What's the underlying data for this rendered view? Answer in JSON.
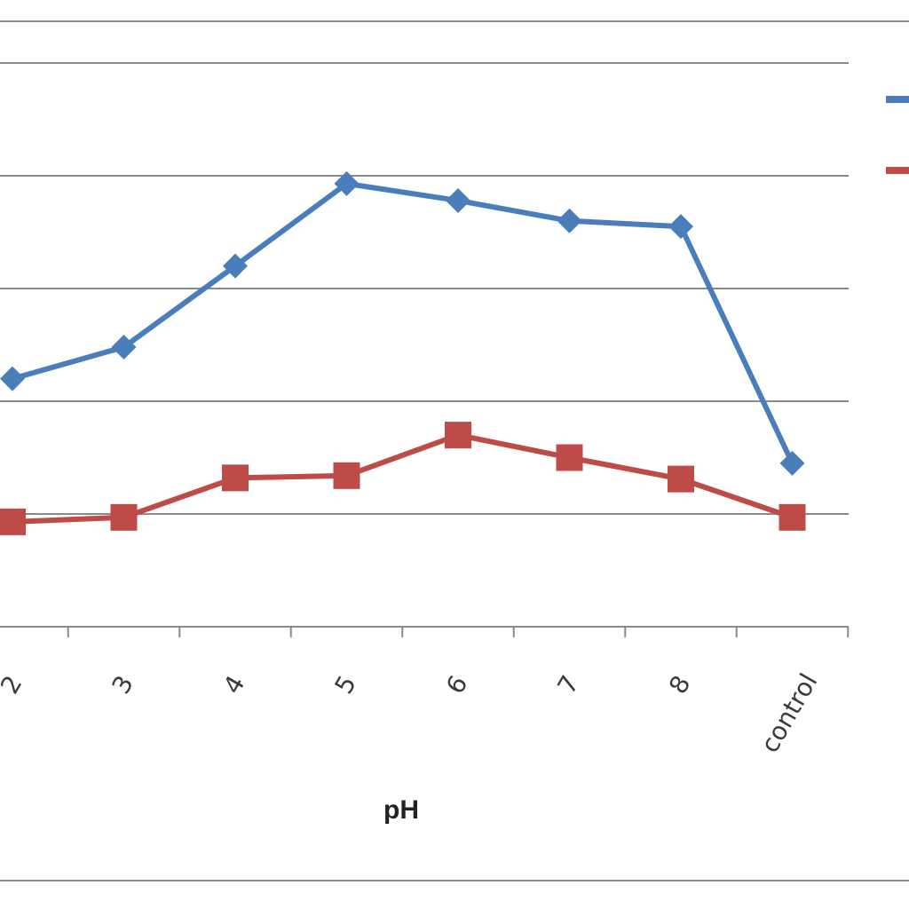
{
  "chart_data": {
    "type": "line",
    "xlabel": "pH",
    "ylabel": "",
    "title": "",
    "categories": [
      "2",
      "3",
      "4",
      "5",
      "6",
      "7",
      "8",
      "control"
    ],
    "ylim": [
      0,
      5.5
    ],
    "grid": true,
    "legend": "right",
    "series": [
      {
        "color": "#4a7ebb",
        "marker": "diamond",
        "values": [
          2.2,
          2.48,
          3.2,
          3.93,
          3.78,
          3.6,
          3.55,
          1.45
        ]
      },
      {
        "color": "#be4b48",
        "marker": "square",
        "values": [
          0.93,
          0.97,
          1.32,
          1.34,
          1.7,
          1.5,
          1.31,
          0.97
        ]
      }
    ]
  }
}
